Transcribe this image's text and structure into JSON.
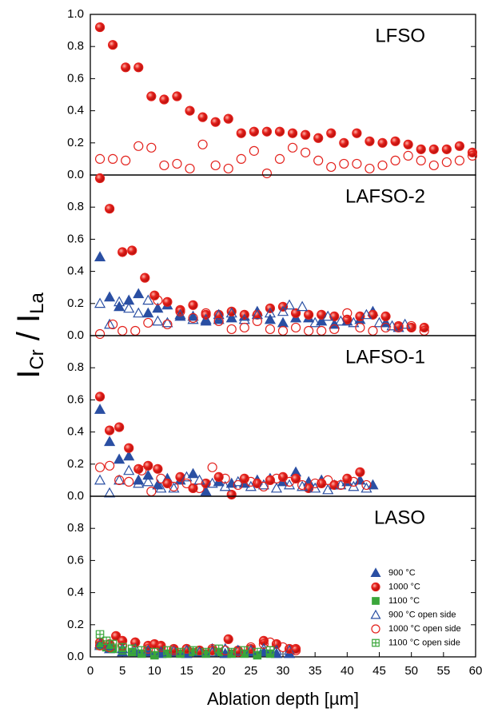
{
  "ylabel_parts": [
    "I",
    "Cr",
    " / I",
    "La"
  ],
  "chart_data": [
    {
      "type": "scatter",
      "title": "LFSO",
      "xlim": [
        0,
        60
      ],
      "ylim": [
        0,
        1
      ],
      "yticks": [
        {
          "value": 0,
          "label": "0.0"
        },
        {
          "value": 0.2,
          "label": "0.2"
        },
        {
          "value": 0.4,
          "label": "0.4"
        },
        {
          "value": 0.6,
          "label": "0.6"
        },
        {
          "value": 0.8,
          "label": "0.8"
        },
        {
          "value": 1,
          "label": "1.0"
        }
      ],
      "series": [
        {
          "name": "1000 °C",
          "color": "#e3201b",
          "marker": "circle",
          "filled": true,
          "x": [
            1.5,
            3.5,
            5.5,
            7.5,
            9.5,
            11.5,
            13.5,
            15.5,
            17.5,
            19.5,
            21.5,
            23.5,
            25.5,
            27.5,
            29.5,
            31.5,
            33.5,
            35.5,
            37.5,
            39.5,
            41.5,
            43.5,
            45.5,
            47.5,
            49.5,
            51.5,
            53.5,
            55.5,
            57.5,
            59.5
          ],
          "values": [
            0.92,
            0.81,
            0.67,
            0.67,
            0.49,
            0.47,
            0.49,
            0.4,
            0.36,
            0.33,
            0.35,
            0.26,
            0.27,
            0.27,
            0.27,
            0.26,
            0.25,
            0.23,
            0.26,
            0.2,
            0.26,
            0.21,
            0.2,
            0.21,
            0.19,
            0.16,
            0.16,
            0.16,
            0.18,
            0.14
          ]
        },
        {
          "name": "1000 °C open side",
          "color": "#e3201b",
          "marker": "circle",
          "filled": false,
          "x": [
            1.5,
            3.5,
            5.5,
            7.5,
            9.5,
            11.5,
            13.5,
            15.5,
            17.5,
            19.5,
            21.5,
            23.5,
            25.5,
            27.5,
            29.5,
            31.5,
            33.5,
            35.5,
            37.5,
            39.5,
            41.5,
            43.5,
            45.5,
            47.5,
            49.5,
            51.5,
            53.5,
            55.5,
            57.5,
            59.5
          ],
          "values": [
            0.1,
            0.1,
            0.09,
            0.18,
            0.17,
            0.06,
            0.07,
            0.04,
            0.19,
            0.06,
            0.04,
            0.1,
            0.15,
            0.01,
            0.1,
            0.17,
            0.14,
            0.09,
            0.05,
            0.07,
            0.07,
            0.04,
            0.06,
            0.09,
            0.12,
            0.09,
            0.06,
            0.08,
            0.09,
            0.12
          ]
        }
      ]
    },
    {
      "type": "scatter",
      "title": "LAFSO-2",
      "xlim": [
        0,
        60
      ],
      "ylim": [
        0,
        1
      ],
      "yticks": [
        {
          "value": 0,
          "label": "0.0"
        },
        {
          "value": 0.2,
          "label": "0.2"
        },
        {
          "value": 0.4,
          "label": "0.4"
        },
        {
          "value": 0.6,
          "label": "0.6"
        },
        {
          "value": 0.8,
          "label": "0.8"
        }
      ],
      "series": [
        {
          "name": "900 °C",
          "color": "#2a4fa3",
          "marker": "triangle",
          "filled": true,
          "x": [
            1.5,
            3,
            4.5,
            6,
            7.5,
            9,
            10.5,
            12,
            14,
            16,
            18,
            20,
            22,
            24,
            26,
            28,
            30,
            32,
            34,
            36,
            38,
            40,
            42,
            44,
            46,
            48
          ],
          "values": [
            0.49,
            0.24,
            0.18,
            0.22,
            0.26,
            0.14,
            0.17,
            0.19,
            0.12,
            0.12,
            0.09,
            0.1,
            0.11,
            0.12,
            0.15,
            0.1,
            0.08,
            0.11,
            0.11,
            0.09,
            0.07,
            0.09,
            0.1,
            0.15,
            0.08,
            0.05
          ]
        },
        {
          "name": "1000 °C",
          "color": "#e3201b",
          "marker": "circle",
          "filled": true,
          "x": [
            1.5,
            3,
            5,
            6.5,
            8.5,
            10,
            12,
            14,
            16,
            18,
            20,
            22,
            24,
            26,
            28,
            30,
            32,
            34,
            36,
            38,
            40,
            42,
            44,
            46,
            48,
            50,
            52
          ],
          "values": [
            0.98,
            0.79,
            0.52,
            0.53,
            0.36,
            0.25,
            0.21,
            0.16,
            0.19,
            0.13,
            0.13,
            0.15,
            0.13,
            0.13,
            0.17,
            0.18,
            0.14,
            0.13,
            0.13,
            0.12,
            0.1,
            0.12,
            0.13,
            0.12,
            0.06,
            0.05,
            0.05
          ]
        },
        {
          "name": "900 °C open side",
          "color": "#2a4fa3",
          "marker": "triangle",
          "filled": false,
          "x": [
            1.5,
            3,
            4.5,
            6,
            7.5,
            9,
            10.5,
            12,
            14,
            16,
            18,
            20,
            22,
            24,
            26,
            28,
            30,
            31,
            33,
            35,
            37,
            39,
            41,
            43,
            45,
            47,
            49
          ],
          "values": [
            0.2,
            0.07,
            0.21,
            0.17,
            0.14,
            0.22,
            0.09,
            0.08,
            0.13,
            0.1,
            0.1,
            0.13,
            0.14,
            0.1,
            0.13,
            0.14,
            0.15,
            0.19,
            0.18,
            0.08,
            0.12,
            0.09,
            0.08,
            0.13,
            0.08,
            0.06,
            0.07
          ]
        },
        {
          "name": "1000 °C open side",
          "color": "#e3201b",
          "marker": "circle",
          "filled": false,
          "x": [
            1.5,
            3.5,
            5,
            7,
            9,
            10.5,
            12,
            14,
            16,
            18,
            20,
            22,
            24,
            26,
            28,
            30,
            32,
            34,
            36,
            38,
            40,
            42,
            44,
            46,
            48,
            50,
            52
          ],
          "values": [
            0.01,
            0.07,
            0.03,
            0.03,
            0.08,
            0.22,
            0.07,
            0.15,
            0.11,
            0.14,
            0.09,
            0.04,
            0.05,
            0.09,
            0.04,
            0.03,
            0.05,
            0.03,
            0.03,
            0.04,
            0.14,
            0.05,
            0.03,
            0.05,
            0.05,
            0.06,
            0.03
          ]
        }
      ]
    },
    {
      "type": "scatter",
      "title": "LAFSO-1",
      "xlim": [
        0,
        60
      ],
      "ylim": [
        0,
        1
      ],
      "yticks": [
        {
          "value": 0,
          "label": "0.0"
        },
        {
          "value": 0.2,
          "label": "0.2"
        },
        {
          "value": 0.4,
          "label": "0.4"
        },
        {
          "value": 0.6,
          "label": "0.6"
        },
        {
          "value": 0.8,
          "label": "0.8"
        }
      ],
      "series": [
        {
          "name": "900 °C",
          "color": "#2a4fa3",
          "marker": "triangle",
          "filled": true,
          "x": [
            1.5,
            3,
            4.5,
            6,
            7.5,
            9,
            10.5,
            12,
            14,
            16,
            18,
            20,
            22,
            24,
            26,
            28,
            30,
            32,
            34,
            36,
            38,
            40,
            42,
            44
          ],
          "values": [
            0.54,
            0.34,
            0.23,
            0.25,
            0.1,
            0.13,
            0.07,
            0.11,
            0.1,
            0.14,
            0.03,
            0.09,
            0.08,
            0.08,
            0.1,
            0.11,
            0.09,
            0.15,
            0.09,
            0.1,
            0.07,
            0.09,
            0.1,
            0.07
          ]
        },
        {
          "name": "1000 °C",
          "color": "#e3201b",
          "marker": "circle",
          "filled": true,
          "x": [
            1.5,
            3,
            4.5,
            6,
            7.5,
            9,
            10.5,
            12,
            14,
            16,
            18,
            20,
            22,
            24,
            26,
            28,
            30,
            32,
            34,
            36,
            38,
            40,
            42
          ],
          "values": [
            0.62,
            0.41,
            0.43,
            0.3,
            0.17,
            0.19,
            0.17,
            0.08,
            0.12,
            0.05,
            0.08,
            0.12,
            0.01,
            0.11,
            0.08,
            0.1,
            0.12,
            0.11,
            0.05,
            0.08,
            0.07,
            0.11,
            0.15
          ]
        },
        {
          "name": "900 °C open side",
          "color": "#2a4fa3",
          "marker": "triangle",
          "filled": false,
          "x": [
            1.5,
            3,
            4.5,
            6,
            7.5,
            9,
            11,
            13,
            15,
            17,
            19,
            21,
            23,
            25,
            27,
            29,
            31,
            33,
            35,
            37,
            39,
            41,
            43
          ],
          "values": [
            0.1,
            0.02,
            0.1,
            0.16,
            0.08,
            0.09,
            0.05,
            0.05,
            0.12,
            0.1,
            0.08,
            0.06,
            0.09,
            0.06,
            0.07,
            0.05,
            0.07,
            0.06,
            0.05,
            0.04,
            0.07,
            0.06,
            0.05
          ]
        },
        {
          "name": "1000 °C open side",
          "color": "#e3201b",
          "marker": "circle",
          "filled": false,
          "x": [
            1.5,
            3,
            4.5,
            6,
            8,
            9.5,
            11,
            13,
            15,
            17,
            19,
            21,
            23,
            25,
            27,
            29,
            31,
            33,
            35,
            37,
            39,
            41,
            43
          ],
          "values": [
            0.18,
            0.19,
            0.1,
            0.09,
            0.16,
            0.03,
            0.11,
            0.06,
            0.08,
            0.05,
            0.18,
            0.11,
            0.07,
            0.09,
            0.06,
            0.11,
            0.09,
            0.07,
            0.08,
            0.1,
            0.07,
            0.09,
            0.07
          ]
        }
      ]
    },
    {
      "type": "scatter",
      "title": "LASO",
      "xlim": [
        0,
        60
      ],
      "ylim": [
        0,
        1
      ],
      "xticks": [
        0,
        5,
        10,
        15,
        20,
        25,
        30,
        35,
        40,
        45,
        50,
        55,
        60
      ],
      "xlabel": "Ablation depth [µm]",
      "legend": "right",
      "yticks": [
        {
          "value": 0,
          "label": "0.0"
        },
        {
          "value": 0.2,
          "label": "0.2"
        },
        {
          "value": 0.4,
          "label": "0.4"
        },
        {
          "value": 0.6,
          "label": "0.6"
        },
        {
          "value": 0.8,
          "label": "0.8"
        }
      ],
      "series": [
        {
          "name": "900 °C",
          "color": "#2a4fa3",
          "marker": "triangle",
          "filled": true,
          "x": [
            1.5,
            3,
            5,
            7,
            9,
            11,
            13,
            15,
            17,
            19,
            21,
            23,
            25,
            27,
            29,
            31
          ],
          "values": [
            0.07,
            0.05,
            0.03,
            0.03,
            0.03,
            0.02,
            0.03,
            0.02,
            0.03,
            0.05,
            0.02,
            0.03,
            0.03,
            0.03,
            0.02,
            0.02
          ]
        },
        {
          "name": "1000 °C",
          "color": "#e3201b",
          "marker": "circle",
          "filled": true,
          "x": [
            1.5,
            3,
            4,
            5,
            7,
            9,
            10,
            11,
            13,
            15,
            17,
            19,
            21.5,
            23,
            25,
            27,
            29,
            31,
            32
          ],
          "values": [
            0.09,
            0.08,
            0.13,
            0.1,
            0.09,
            0.07,
            0.08,
            0.07,
            0.05,
            0.05,
            0.04,
            0.04,
            0.11,
            0.04,
            0.05,
            0.1,
            0.08,
            0.05,
            0.05
          ]
        },
        {
          "name": "1100 °C",
          "color": "#3aa63a",
          "marker": "square",
          "filled": true,
          "x": [
            1.5,
            2.5,
            3.5,
            5,
            6.5,
            8,
            10,
            12,
            14,
            16,
            18,
            20,
            22,
            24,
            26,
            28
          ],
          "values": [
            0.07,
            0.06,
            0.05,
            0.04,
            0.03,
            0.02,
            0.01,
            0.02,
            0.02,
            0.03,
            0.02,
            0.03,
            0.02,
            0.02,
            0.01,
            0.02
          ]
        },
        {
          "name": "900 °C open side",
          "color": "#2a4fa3",
          "marker": "triangle",
          "filled": false,
          "x": [
            1.5,
            3,
            5,
            7,
            9,
            11,
            13,
            15,
            17,
            19,
            21,
            23,
            25,
            27,
            29,
            31
          ],
          "values": [
            0.08,
            0.07,
            0.05,
            0.05,
            0.04,
            0.03,
            0.04,
            0.04,
            0.03,
            0.03,
            0.05,
            0.04,
            0.04,
            0.05,
            0.04,
            0.04
          ]
        },
        {
          "name": "1000 °C open side",
          "color": "#e3201b",
          "marker": "circle",
          "filled": false,
          "x": [
            1.5,
            3,
            5,
            7,
            9,
            11,
            13,
            15,
            17,
            19,
            21,
            23,
            25,
            27,
            28,
            30,
            32
          ],
          "values": [
            0.07,
            0.06,
            0.07,
            0.09,
            0.05,
            0.06,
            0.04,
            0.05,
            0.04,
            0.05,
            0.04,
            0.03,
            0.06,
            0.08,
            0.09,
            0.06,
            0.04
          ]
        },
        {
          "name": "1100 °C open side",
          "color": "#3aa63a",
          "marker": "squareplus",
          "filled": false,
          "x": [
            1.5,
            2.5,
            3.5,
            5,
            6.5,
            8,
            10,
            12,
            14,
            16,
            18,
            20,
            22,
            24,
            26,
            28
          ],
          "values": [
            0.14,
            0.1,
            0.08,
            0.06,
            0.05,
            0.04,
            0.03,
            0.04,
            0.03,
            0.04,
            0.03,
            0.05,
            0.03,
            0.04,
            0.03,
            0.04
          ]
        }
      ]
    }
  ]
}
